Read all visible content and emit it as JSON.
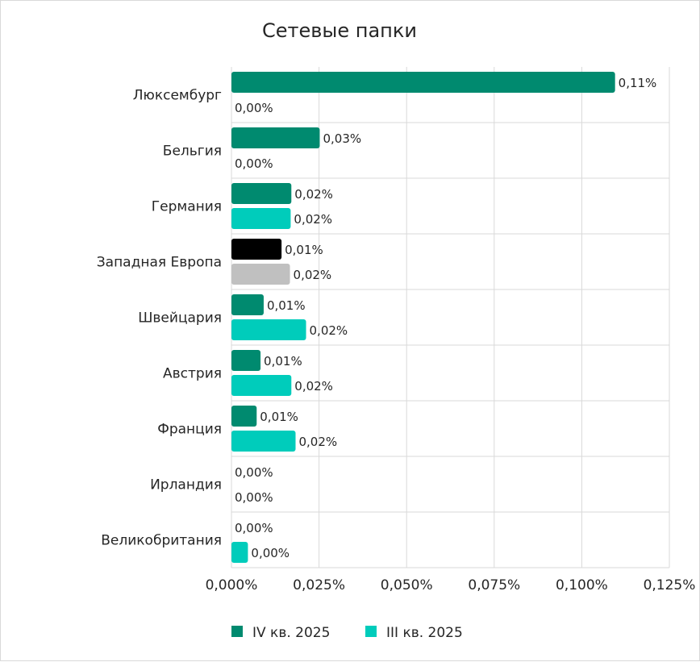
{
  "chart_data": {
    "type": "bar",
    "orientation": "horizontal",
    "title": "Сетевые папки",
    "xlabel": "",
    "ylabel": "",
    "xlim": [
      0,
      0.125
    ],
    "x_ticks": [
      {
        "value": 0,
        "label": "0,000%"
      },
      {
        "value": 0.025,
        "label": "0,025%"
      },
      {
        "value": 0.05,
        "label": "0,050%"
      },
      {
        "value": 0.075,
        "label": "0,075%"
      },
      {
        "value": 0.1,
        "label": "0,100%"
      },
      {
        "value": 0.125,
        "label": "0,125%"
      }
    ],
    "grid": true,
    "legend_position": "bottom",
    "categories": [
      "Люксембург",
      "Бельгия",
      "Германия",
      "Западная Европа",
      "Швейцария",
      "Австрия",
      "Франция",
      "Ирландия",
      "Великобритания"
    ],
    "series": [
      {
        "name": "IV кв. 2025",
        "color": "#008a6f",
        "values": [
          0.1095,
          0.0252,
          0.0171,
          0.0143,
          0.0092,
          0.0083,
          0.0072,
          0.0,
          0.0
        ],
        "labels": [
          "0,11%",
          "0,03%",
          "0,02%",
          "0,01%",
          "0,01%",
          "0,01%",
          "0,01%",
          "0,00%",
          "0,00%"
        ]
      },
      {
        "name": "III кв. 2025",
        "color": "#00ccbb",
        "values": [
          0.0,
          0.0,
          0.0169,
          0.0167,
          0.0213,
          0.0171,
          0.0183,
          0.0,
          0.0047
        ],
        "labels": [
          "0,00%",
          "0,00%",
          "0,02%",
          "0,02%",
          "0,02%",
          "0,02%",
          "0,02%",
          "0,00%",
          "0,00%"
        ]
      }
    ],
    "highlight": {
      "category": "Западная Европа",
      "colors": [
        "#000000",
        "#c0c0c0"
      ]
    }
  }
}
